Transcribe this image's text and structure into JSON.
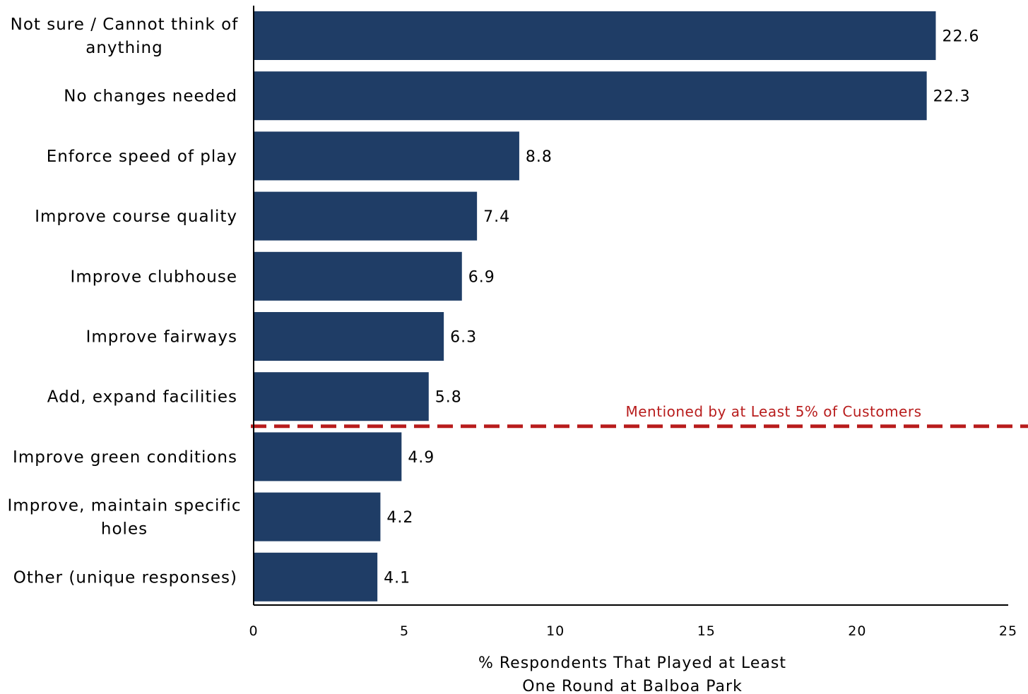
{
  "chart_data": {
    "type": "bar",
    "orientation": "horizontal",
    "categories": [
      "Not sure / Cannot think of anything",
      "No changes needed",
      "Enforce speed of play",
      "Improve course quality",
      "Improve clubhouse",
      "Improve fairways",
      "Add, expand facilities",
      "Improve green conditions",
      "Improve, maintain specific holes",
      "Other (unique responses)"
    ],
    "category_lines": [
      [
        "Not sure / Cannot think of",
        "anything"
      ],
      [
        "No changes needed"
      ],
      [
        "Enforce speed of play"
      ],
      [
        "Improve course quality"
      ],
      [
        "Improve clubhouse"
      ],
      [
        "Improve fairways"
      ],
      [
        "Add, expand facilities"
      ],
      [
        "Improve green conditions"
      ],
      [
        "Improve, maintain specific",
        "holes"
      ],
      [
        "Other (unique responses)"
      ]
    ],
    "values": [
      22.6,
      22.3,
      8.8,
      7.4,
      6.9,
      6.3,
      5.8,
      4.9,
      4.2,
      4.1
    ],
    "value_labels": [
      "22.6",
      "22.3",
      "8.8",
      "7.4",
      "6.9",
      "6.3",
      "5.8",
      "4.9",
      "4.2",
      "4.1"
    ],
    "xlabel_lines": [
      "% Respondents That Played at Least",
      "One Round at Balboa Park"
    ],
    "ylabel": "",
    "title": "",
    "xlim": [
      0,
      25
    ],
    "xticks": [
      0,
      5,
      10,
      15,
      20,
      25
    ],
    "grid": false,
    "legend": "none",
    "threshold": {
      "label": "Mentioned by at Least 5% of Customers",
      "position_between_categories": [
        "Add, expand facilities",
        "Improve green conditions"
      ]
    }
  },
  "colors": {
    "bar": "#1f3d66",
    "threshold": "#b81c1c",
    "axis": "#000000"
  }
}
